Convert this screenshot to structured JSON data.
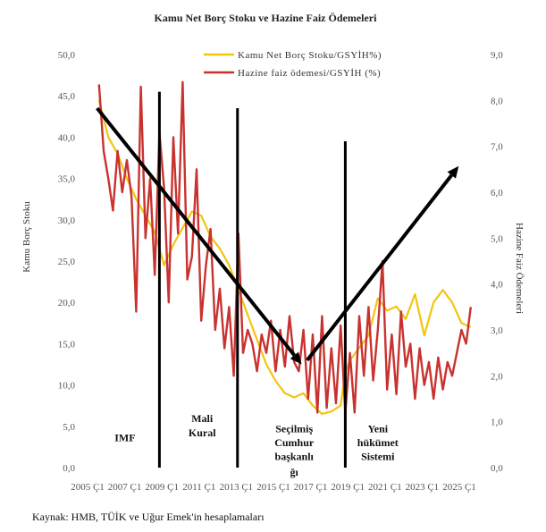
{
  "chart_data": {
    "type": "line",
    "title": "Kamu Net Borç Stoku  ve Hazine Faiz Ödemeleri",
    "ylabel": "Kamu Borç Stoku",
    "y2label": "Hazine Faiz Ödemeleri",
    "ylim": [
      0,
      50
    ],
    "y2lim": [
      0,
      9
    ],
    "yticks": [
      "0,0",
      "5,0",
      "10,0",
      "15,0",
      "20,0",
      "25,0",
      "30,0",
      "35,0",
      "40,0",
      "45,0",
      "50,0"
    ],
    "y2ticks": [
      "0,0",
      "1,0",
      "2,0",
      "3,0",
      "4,0",
      "5,0",
      "6,0",
      "7,0",
      "8,0",
      "9,0"
    ],
    "xtick_labels": [
      "2005 Ç1",
      "2007 Ç1",
      "2009 Ç1",
      "2011 Ç1",
      "2013 Ç1",
      "2015 Ç1",
      "2017 Ç1",
      "2019 Ç1",
      "2021 Ç1",
      "2023 Ç1",
      "2025 Ç1"
    ],
    "xtick_years": [
      2005,
      2007,
      2009,
      2011,
      2013,
      2015,
      2017,
      2019,
      2021,
      2023,
      2025
    ],
    "xlim": [
      2005,
      2026.25
    ],
    "legend_position": "top-right",
    "series": [
      {
        "name": "Kamu Net Borç Stoku/GSYİH%)",
        "axis": "left",
        "color": "#f2c50f",
        "x": [
          2006.0,
          2006.5,
          2007.0,
          2007.5,
          2008.0,
          2008.5,
          2009.0,
          2009.5,
          2010.0,
          2010.5,
          2011.0,
          2011.5,
          2012.0,
          2012.5,
          2013.0,
          2013.5,
          2014.0,
          2014.5,
          2015.0,
          2015.5,
          2016.0,
          2016.5,
          2017.0,
          2017.5,
          2018.0,
          2018.5,
          2019.0,
          2019.25,
          2019.5,
          2020.0,
          2020.5,
          2021.0,
          2021.5,
          2022.0,
          2022.5,
          2023.0,
          2023.5,
          2024.0,
          2024.5,
          2025.0,
          2025.5,
          2026.0
        ],
        "values": [
          44.5,
          40.0,
          38.0,
          35.0,
          32.5,
          30.5,
          28.5,
          24.5,
          27.0,
          29.0,
          31.0,
          30.5,
          28.0,
          26.5,
          24.5,
          21.5,
          18.5,
          15.5,
          12.5,
          10.5,
          9.0,
          8.5,
          9.0,
          7.5,
          6.5,
          6.8,
          7.5,
          11.5,
          13.0,
          14.5,
          16.0,
          20.5,
          19.0,
          19.5,
          18.0,
          21.0,
          16.0,
          20.0,
          21.5,
          20.0,
          17.5,
          17.0
        ]
      },
      {
        "name": "Hazine faiz ödemesi/GSYİH (%)",
        "axis": "right",
        "color": "#c8322f",
        "x": [
          2006.0,
          2006.25,
          2006.5,
          2006.75,
          2007.0,
          2007.25,
          2007.5,
          2007.75,
          2008.0,
          2008.25,
          2008.5,
          2008.75,
          2009.0,
          2009.25,
          2009.5,
          2009.75,
          2010.0,
          2010.25,
          2010.5,
          2010.75,
          2011.0,
          2011.25,
          2011.5,
          2011.75,
          2012.0,
          2012.25,
          2012.5,
          2012.75,
          2013.0,
          2013.25,
          2013.5,
          2013.75,
          2014.0,
          2014.25,
          2014.5,
          2014.75,
          2015.0,
          2015.25,
          2015.5,
          2015.75,
          2016.0,
          2016.25,
          2016.5,
          2016.75,
          2017.0,
          2017.25,
          2017.5,
          2017.75,
          2018.0,
          2018.25,
          2018.5,
          2018.75,
          2019.0,
          2019.25,
          2019.5,
          2019.75,
          2020.0,
          2020.25,
          2020.5,
          2020.75,
          2021.0,
          2021.25,
          2021.5,
          2021.75,
          2022.0,
          2022.25,
          2022.5,
          2022.75,
          2023.0,
          2023.25,
          2023.5,
          2023.75,
          2024.0,
          2024.25,
          2024.5,
          2024.75,
          2025.0,
          2025.25,
          2025.5,
          2025.75,
          2026.0
        ],
        "values": [
          8.35,
          6.9,
          6.3,
          5.6,
          6.9,
          6.0,
          6.7,
          5.9,
          3.4,
          8.3,
          5.0,
          6.3,
          4.2,
          7.3,
          6.1,
          3.6,
          7.2,
          5.1,
          8.4,
          4.1,
          4.6,
          6.5,
          3.2,
          4.4,
          5.2,
          3.0,
          3.9,
          2.6,
          3.5,
          2.0,
          5.1,
          2.5,
          3.0,
          2.7,
          2.1,
          2.9,
          2.5,
          3.2,
          2.1,
          3.0,
          2.2,
          3.3,
          2.3,
          2.1,
          3.0,
          1.5,
          2.9,
          1.2,
          3.3,
          1.3,
          2.6,
          1.4,
          3.1,
          1.2,
          2.5,
          1.2,
          3.3,
          2.0,
          3.5,
          1.9,
          3.0,
          4.5,
          1.7,
          2.9,
          1.6,
          3.4,
          2.2,
          2.7,
          1.5,
          2.6,
          1.8,
          2.3,
          1.5,
          2.4,
          1.7,
          2.3,
          2.0,
          2.5,
          3.0,
          2.7,
          3.5
        ]
      }
    ],
    "vertical_lines_x": [
      2009.25,
      2013.45,
      2019.25
    ],
    "vertical_lines_top_y_left": [
      45.5,
      43.5,
      39.5
    ],
    "arrows": [
      {
        "from": [
          2005.9,
          43.5
        ],
        "to": [
          2016.9,
          12.5
        ]
      },
      {
        "from": [
          2017.2,
          13.0
        ],
        "to": [
          2025.35,
          36.5
        ]
      }
    ],
    "annotations": [
      {
        "text": "IMF",
        "x": 2007.4,
        "y": 3.2
      },
      {
        "text": "Mali",
        "x": 2011.55,
        "y": 5.5
      },
      {
        "text": "Kural",
        "x": 2011.55,
        "y": 3.8
      },
      {
        "text": "Seçilmiş",
        "x": 2016.5,
        "y": 4.3
      },
      {
        "text": "Cumhur",
        "x": 2016.5,
        "y": 2.6
      },
      {
        "text": "başkanlı",
        "x": 2016.5,
        "y": 0.9
      },
      {
        "text": "ğı",
        "x": 2016.5,
        "y": -1.0
      },
      {
        "text": "Yeni",
        "x": 2021.0,
        "y": 4.3
      },
      {
        "text": "hükümet",
        "x": 2021.0,
        "y": 2.6
      },
      {
        "text": "Sistemi",
        "x": 2021.0,
        "y": 0.9
      }
    ]
  },
  "source": "Kaynak: HMB, TÜİK ve Uğur Emek'in hesaplamaları"
}
